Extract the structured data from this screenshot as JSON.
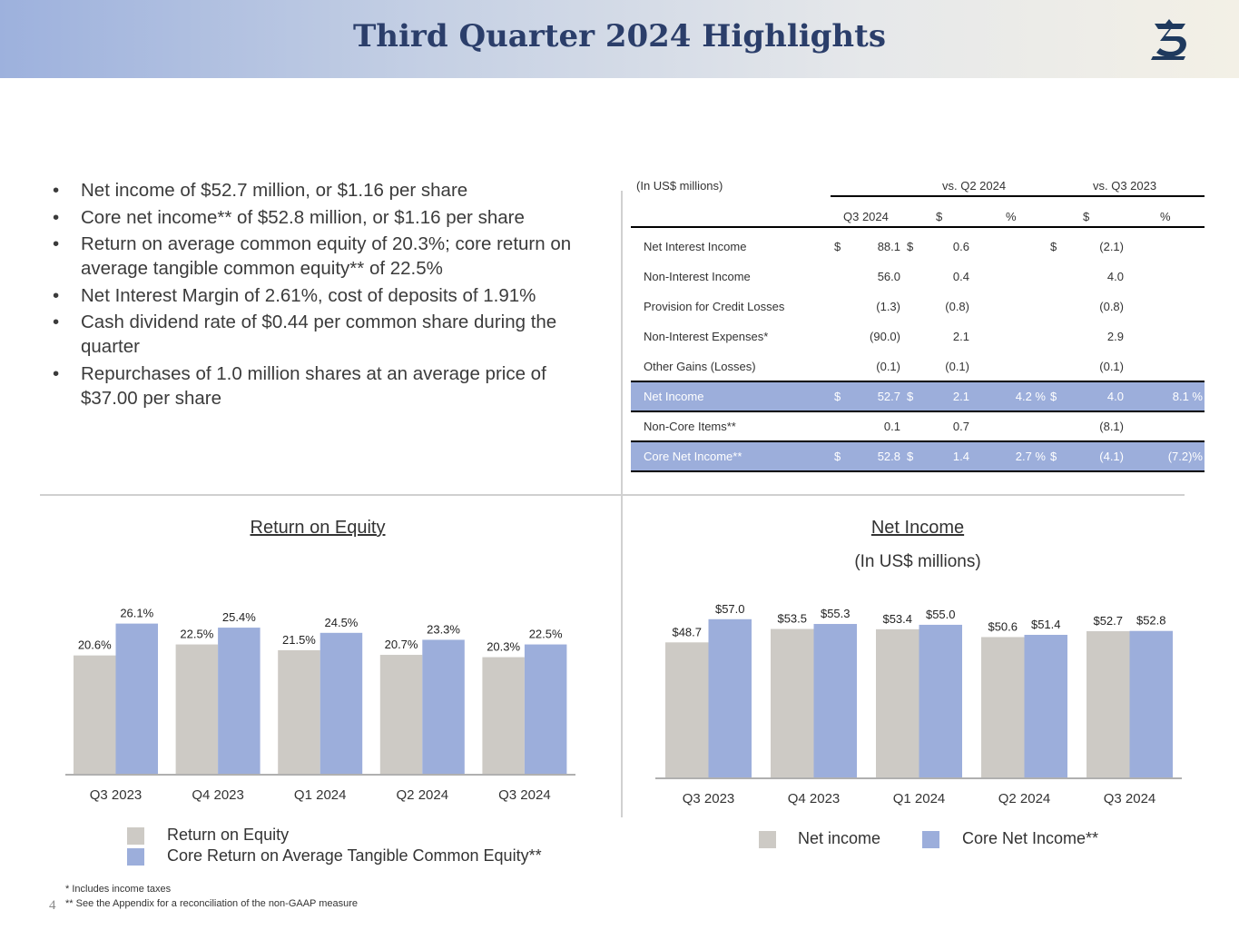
{
  "header": {
    "title": "Third Quarter 2024 Highlights"
  },
  "bullets": [
    {
      "marker": "•",
      "text": "Net income of $52.7 million, or $1.16 per share"
    },
    {
      "marker": "•",
      "text": "Core net income** of $52.8 million, or $1.16 per share"
    },
    {
      "marker": "•",
      "text": "Return on average common equity of 20.3%; core return on average tangible common equity** of 22.5%"
    },
    {
      "marker": "•",
      "text": "Net Interest Margin of 2.61%, cost of deposits of 1.91%"
    },
    {
      "marker": "•",
      "text": "Cash dividend rate of $0.44 per common share during the quarter"
    },
    {
      "marker": "•",
      "text": "Repurchases of 1.0 million shares at an average price of $37.00 per share"
    }
  ],
  "table": {
    "unit_label": "(In US$ millions)",
    "group_q2": "vs. Q2 2024",
    "group_q3": "vs. Q3 2023",
    "col_q3": "Q3 2024",
    "col_dollar1": "$",
    "col_pct1": "%",
    "col_dollar2": "$",
    "col_pct2": "%",
    "rows": [
      {
        "label": "Net Interest Income",
        "cur1": "$",
        "v1": "88.1",
        "cur2": "$",
        "d1": "0.6",
        "p1": "",
        "cur3": "$",
        "d2": "(2.1)",
        "p2": ""
      },
      {
        "label": "Non-Interest Income",
        "cur1": "",
        "v1": "56.0",
        "cur2": "",
        "d1": "0.4",
        "p1": "",
        "cur3": "",
        "d2": "4.0",
        "p2": ""
      },
      {
        "label": "Provision for Credit Losses",
        "cur1": "",
        "v1": "(1.3)",
        "cur2": "",
        "d1": "(0.8)",
        "p1": "",
        "cur3": "",
        "d2": "(0.8)",
        "p2": ""
      },
      {
        "label": "Non-Interest Expenses*",
        "cur1": "",
        "v1": "(90.0)",
        "cur2": "",
        "d1": "2.1",
        "p1": "",
        "cur3": "",
        "d2": "2.9",
        "p2": ""
      },
      {
        "label": "Other Gains (Losses)",
        "cur1": "",
        "v1": "(0.1)",
        "cur2": "",
        "d1": "(0.1)",
        "p1": "",
        "cur3": "",
        "d2": "(0.1)",
        "p2": ""
      },
      {
        "label": "Net Income",
        "cur1": "$",
        "v1": "52.7",
        "cur2": "$",
        "d1": "2.1",
        "p1": "4.2 %",
        "cur3": "$",
        "d2": "4.0",
        "p2": "8.1 %"
      },
      {
        "label": "Non-Core Items**",
        "cur1": "",
        "v1": "0.1",
        "cur2": "",
        "d1": "0.7",
        "p1": "",
        "cur3": "",
        "d2": "(8.1)",
        "p2": ""
      },
      {
        "label": "Core Net Income**",
        "cur1": "$",
        "v1": "52.8",
        "cur2": "$",
        "d1": "1.4",
        "p1": "2.7 %",
        "cur3": "$",
        "d2": "(4.1)",
        "p2": "(7.2)%"
      }
    ]
  },
  "chart_data": [
    {
      "type": "bar",
      "title": "Return on Equity",
      "categories": [
        "Q3 2023",
        "Q4 2023",
        "Q1 2024",
        "Q2 2024",
        "Q3 2024"
      ],
      "series": [
        {
          "name": "Return on Equity",
          "values": [
            20.6,
            22.5,
            21.5,
            20.7,
            20.3
          ],
          "labels": [
            "20.6%",
            "22.5%",
            "21.5%",
            "20.7%",
            "20.3%"
          ],
          "color": "#cdcac5"
        },
        {
          "name": "Core Return on Average Tangible Common Equity**",
          "values": [
            26.1,
            25.4,
            24.5,
            23.3,
            22.5
          ],
          "labels": [
            "26.1%",
            "25.4%",
            "24.5%",
            "23.3%",
            "22.5%"
          ],
          "color": "#9caedb"
        }
      ],
      "ylim": [
        0,
        28
      ]
    },
    {
      "type": "bar",
      "title": "Net Income",
      "subtitle": "(In US$ millions)",
      "categories": [
        "Q3 2023",
        "Q4 2023",
        "Q1 2024",
        "Q2 2024",
        "Q3 2024"
      ],
      "series": [
        {
          "name": "Net income",
          "values": [
            48.7,
            53.5,
            53.4,
            50.6,
            52.7
          ],
          "labels": [
            "$48.7",
            "$53.5",
            "$53.4",
            "$50.6",
            "$52.7"
          ],
          "color": "#cdcac5"
        },
        {
          "name": "Core Net Income**",
          "values": [
            57.0,
            55.3,
            55.0,
            51.4,
            52.8
          ],
          "labels": [
            "$57.0",
            "$55.3",
            "$55.0",
            "$51.4",
            "$52.8"
          ],
          "color": "#9caedb"
        }
      ],
      "ylim": [
        0,
        61
      ]
    }
  ],
  "footnotes": [
    "*  Includes income taxes",
    "** See the Appendix for a reconciliation of the non-GAAP measure"
  ],
  "page_number": "4",
  "colors": {
    "accent": "#9caedb",
    "gray_bar": "#cdcac5",
    "title": "#2b3e6a"
  }
}
